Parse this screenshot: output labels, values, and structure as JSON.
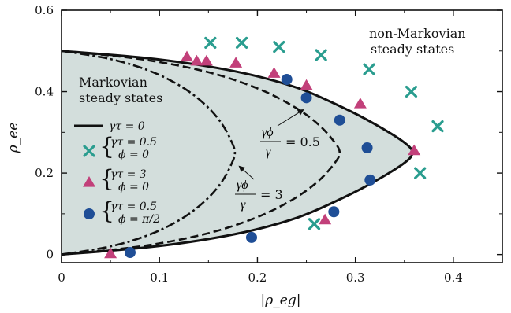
{
  "chart_data": {
    "type": "scatter",
    "xlabel": "|ρ_eg|",
    "ylabel": "ρ_ee",
    "xlim": [
      0,
      0.45
    ],
    "ylim": [
      -0.02,
      0.6
    ],
    "xticks": [
      "0",
      "0.1",
      "0.2",
      "0.3",
      "0.4"
    ],
    "yticks": [
      "0",
      "0.2",
      "0.4",
      "0.6"
    ],
    "grid": false,
    "legend_position": "center-left",
    "regions": {
      "markovian": [
        "Markovian",
        "steady states"
      ],
      "non_markovian": [
        "non-Markovian",
        "steady states"
      ]
    },
    "annotations": {
      "rate_ratio_a": {
        "numerator": "γϕ",
        "denominator": "γ",
        "value": "= 0.5"
      },
      "rate_ratio_b": {
        "numerator": "γϕ",
        "denominator": "γ",
        "value": "= 3"
      }
    },
    "curves": [
      {
        "style": "solid",
        "legend": "γτ = 0",
        "points": [
          [
            0,
            0
          ],
          [
            0.096,
            0.02
          ],
          [
            0.177,
            0.05
          ],
          [
            0.24,
            0.09
          ],
          [
            0.288,
            0.14
          ],
          [
            0.32,
            0.18
          ],
          [
            0.35,
            0.225
          ],
          [
            0.358,
            0.25
          ],
          [
            0.35,
            0.275
          ],
          [
            0.32,
            0.32
          ],
          [
            0.288,
            0.36
          ],
          [
            0.24,
            0.41
          ],
          [
            0.177,
            0.45
          ],
          [
            0.096,
            0.48
          ],
          [
            0,
            0.5
          ]
        ]
      },
      {
        "style": "dashed",
        "points": [
          [
            0,
            0
          ],
          [
            0.08,
            0.02
          ],
          [
            0.146,
            0.05
          ],
          [
            0.198,
            0.09
          ],
          [
            0.236,
            0.135
          ],
          [
            0.262,
            0.18
          ],
          [
            0.279,
            0.225
          ],
          [
            0.284,
            0.25
          ],
          [
            0.279,
            0.275
          ],
          [
            0.262,
            0.32
          ],
          [
            0.236,
            0.365
          ],
          [
            0.198,
            0.41
          ],
          [
            0.146,
            0.45
          ],
          [
            0.08,
            0.48
          ],
          [
            0,
            0.5
          ]
        ]
      },
      {
        "style": "dashdot",
        "points": [
          [
            0,
            0
          ],
          [
            0.05,
            0.02
          ],
          [
            0.091,
            0.05
          ],
          [
            0.124,
            0.09
          ],
          [
            0.148,
            0.135
          ],
          [
            0.164,
            0.18
          ],
          [
            0.174,
            0.225
          ],
          [
            0.177,
            0.25
          ],
          [
            0.174,
            0.275
          ],
          [
            0.164,
            0.32
          ],
          [
            0.148,
            0.365
          ],
          [
            0.124,
            0.41
          ],
          [
            0.091,
            0.45
          ],
          [
            0.05,
            0.48
          ],
          [
            0,
            0.5
          ]
        ]
      }
    ],
    "series": [
      {
        "marker": "x",
        "color": "#2a9d8f",
        "legend": {
          "brace": "{",
          "line1": "γτ = 0.5",
          "line2": "ϕ = 0"
        },
        "points": [
          [
            0.152,
            0.52
          ],
          [
            0.184,
            0.52
          ],
          [
            0.222,
            0.51
          ],
          [
            0.265,
            0.49
          ],
          [
            0.314,
            0.455
          ],
          [
            0.357,
            0.4
          ],
          [
            0.384,
            0.315
          ],
          [
            0.366,
            0.2
          ],
          [
            0.258,
            0.075
          ]
        ]
      },
      {
        "marker": "triangle",
        "color": "#c2407a",
        "legend": {
          "brace": "{",
          "line1": "γτ = 3",
          "line2": "ϕ = 0"
        },
        "points": [
          [
            0.128,
            0.485
          ],
          [
            0.138,
            0.475
          ],
          [
            0.148,
            0.475
          ],
          [
            0.178,
            0.47
          ],
          [
            0.217,
            0.445
          ],
          [
            0.25,
            0.415
          ],
          [
            0.305,
            0.37
          ],
          [
            0.36,
            0.255
          ],
          [
            0.269,
            0.085
          ],
          [
            0.05,
            0.002
          ]
        ]
      },
      {
        "marker": "circle",
        "color": "#1f4e96",
        "legend": {
          "brace": "{",
          "line1": "γτ = 0.5",
          "line2": "ϕ = π/2"
        },
        "points": [
          [
            0.23,
            0.43
          ],
          [
            0.25,
            0.385
          ],
          [
            0.284,
            0.33
          ],
          [
            0.312,
            0.262
          ],
          [
            0.315,
            0.183
          ],
          [
            0.278,
            0.105
          ],
          [
            0.194,
            0.042
          ],
          [
            0.07,
            0.005
          ]
        ]
      }
    ]
  }
}
